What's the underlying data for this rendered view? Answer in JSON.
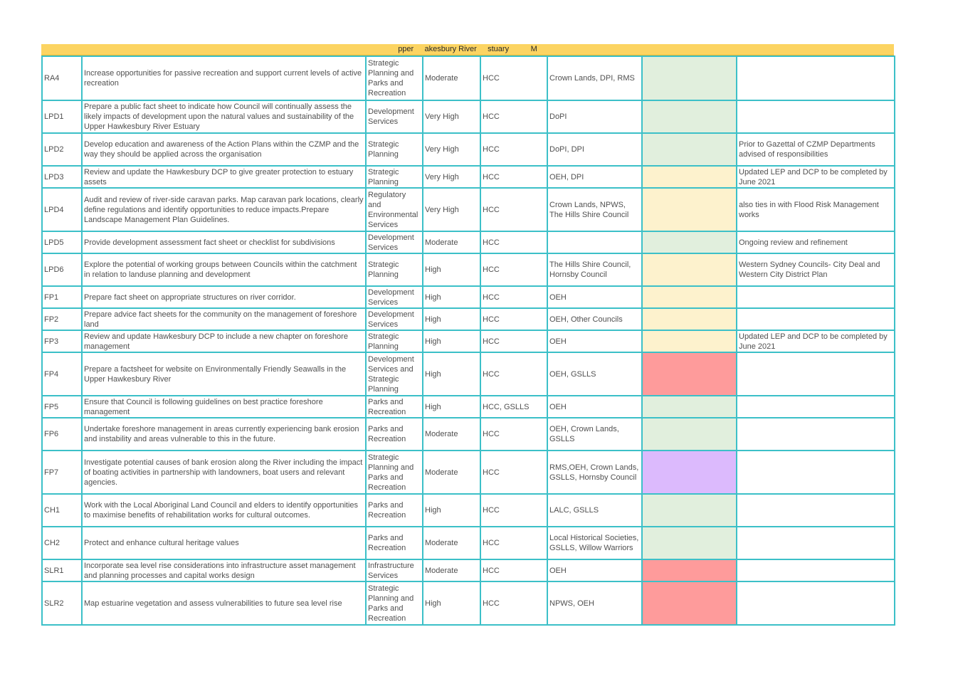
{
  "header": {
    "title": "pper     akesbury River     stuary          M"
  },
  "colors": {
    "green": "#e1efdd",
    "yellow": "#fdf2cd",
    "red": "#fe9b9b",
    "purple": "#dcbafd",
    "grid": "#3cc0c8",
    "banner": "#fcd462"
  },
  "rows": [
    {
      "id": "RA4",
      "action": "Increase opportunities for passive recreation and support current levels of active recreation",
      "dept": "Strategic Planning and Parks and Recreation",
      "priority": "Moderate",
      "lead": "HCC",
      "partners": "Crown Lands, DPI, RMS",
      "status": "green",
      "comment": ""
    },
    {
      "id": "LPD1",
      "action": "Prepare a public fact sheet to indicate how Council will continually assess the likely impacts of development upon the natural values and sustainability of the Upper Hawkesbury River Estuary",
      "dept": "Development Services",
      "priority": "Very High",
      "lead": "HCC",
      "partners": "DoPI",
      "status": "green",
      "comment": ""
    },
    {
      "id": "LPD2",
      "action": "Develop education and awareness of the Action Plans within the CZMP and the way they should be applied across the organisation",
      "dept": "Strategic Planning",
      "priority": "Very High",
      "lead": "HCC",
      "partners": "DoPI, DPI",
      "status": "green",
      "comment": "Prior to Gazettal of CZMP Departments advised of responsibilities"
    },
    {
      "id": "LPD3",
      "action": "Review and update the Hawkesbury DCP to give greater protection to estuary assets",
      "dept": "Strategic Planning",
      "priority": "Very High",
      "lead": "HCC",
      "partners": "OEH, DPI",
      "status": "yellow",
      "comment": "Updated LEP and DCP to be completed by June 2021"
    },
    {
      "id": "LPD4",
      "action": "Audit and review of river-side caravan parks. Map caravan park locations, clearly define regulations and identify opportunities to reduce impacts.Prepare Landscape Management Plan Guidelines.",
      "dept": "Regulatory and Environmental Services",
      "priority": "Very High",
      "lead": "HCC",
      "partners": "Crown Lands, NPWS, The Hills Shire Council",
      "status": "yellow",
      "comment": "also ties in with Flood Risk Management works"
    },
    {
      "id": "LPD5",
      "action": "Provide development assessment fact sheet or checklist for subdivisions",
      "dept": "Development Services",
      "priority": "Moderate",
      "lead": "HCC",
      "partners": "",
      "status": "green",
      "comment": "Ongoing review and refinement"
    },
    {
      "id": "LPD6",
      "action": "Explore the potential of working groups between Councils within the catchment in relation to landuse planning and development",
      "dept": "Strategic Planning",
      "priority": "High",
      "lead": "HCC",
      "partners": "The Hills Shire Council, Hornsby Council",
      "status": "yellow",
      "comment": "Western Sydney Councils- City Deal and Western City District Plan"
    },
    {
      "id": "FP1",
      "action": "Prepare fact sheet on appropriate structures on river corridor.",
      "dept": "Development Services",
      "priority": "High",
      "lead": "HCC",
      "partners": "OEH",
      "status": "yellow",
      "comment": ""
    },
    {
      "id": "FP2",
      "action": "Prepare advice fact sheets for the community on the management of foreshore land",
      "dept": "Development Services",
      "priority": "High",
      "lead": "HCC",
      "partners": "OEH, Other Councils",
      "status": "yellow",
      "comment": ""
    },
    {
      "id": "FP3",
      "action": "Review and update Hawkesbury DCP to include a new chapter on foreshore management",
      "dept": "Strategic Planning",
      "priority": "High",
      "lead": "HCC",
      "partners": "OEH",
      "status": "yellow",
      "comment": "Updated LEP and DCP to be completed by June 2021"
    },
    {
      "id": "FP4",
      "action": "Prepare a factsheet for website on Environmentally Friendly Seawalls in the Upper Hawkesbury River",
      "dept": "Development Services and Strategic Planning",
      "priority": "High",
      "lead": "HCC",
      "partners": "OEH, GSLLS",
      "status": "red",
      "comment": ""
    },
    {
      "id": "FP5",
      "action": "Ensure that Council is following guidelines on best practice foreshore management",
      "dept": "Parks and Recreation",
      "priority": "High",
      "lead": "HCC, GSLLS",
      "partners": "OEH",
      "status": "green",
      "comment": ""
    },
    {
      "id": "FP6",
      "action": "Undertake foreshore management in areas currently experiencing bank erosion and instability and areas vulnerable to this in the future.",
      "dept": "Parks and Recreation",
      "priority": "Moderate",
      "lead": "HCC",
      "partners": "OEH, Crown Lands, GSLLS",
      "status": "green",
      "comment": ""
    },
    {
      "id": "FP7",
      "action": "Investigate potential causes of bank erosion along the River including the impact of boating activities in partnership with landowners, boat users and relevant agencies.",
      "dept": "Strategic Planning and Parks and Recreation",
      "priority": "Moderate",
      "lead": "HCC",
      "partners": "RMS,OEH, Crown Lands, GSLLS, Hornsby Council",
      "status": "purple",
      "comment": ""
    },
    {
      "id": "CH1",
      "action": "Work with the Local Aboriginal Land Council and elders to identify opportunities to maximise benefits of rehabilitation works for cultural outcomes.",
      "dept": "Parks and Recreation",
      "priority": "High",
      "lead": "HCC",
      "partners": "LALC, GSLLS",
      "status": "green",
      "comment": ""
    },
    {
      "id": "CH2",
      "action": "Protect and enhance cultural heritage values",
      "dept": "Parks and Recreation",
      "priority": "Moderate",
      "lead": "HCC",
      "partners": "Local Historical Societies, GSLLS, Willow Warriors",
      "status": "green",
      "comment": ""
    },
    {
      "id": "SLR1",
      "action": "Incorporate sea level rise considerations into infrastructure asset management and planning processes and capital works design",
      "dept": "Infrastructure Services",
      "priority": "Moderate",
      "lead": "HCC",
      "partners": "OEH",
      "status": "red",
      "comment": ""
    },
    {
      "id": "SLR2",
      "action": "Map estuarine vegetation and assess vulnerabilities to future sea level rise",
      "dept": "Strategic Planning and Parks and Recreation",
      "priority": "High",
      "lead": "HCC",
      "partners": "NPWS, OEH",
      "status": "red",
      "comment": ""
    }
  ]
}
